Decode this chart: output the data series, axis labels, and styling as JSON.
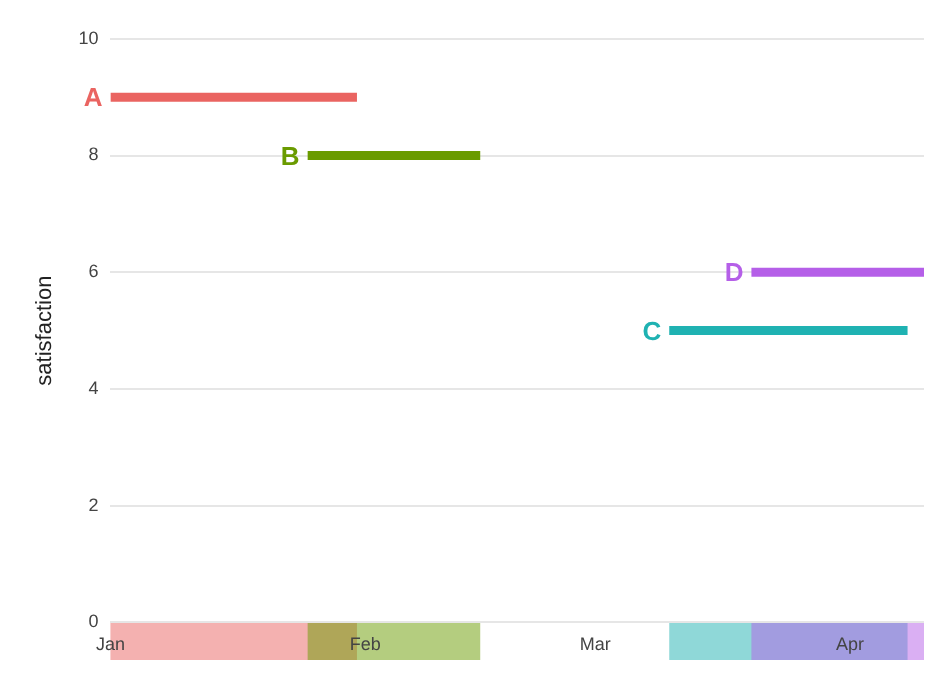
{
  "chart_data": {
    "type": "line",
    "ylabel": "satisfaction",
    "series": [
      {
        "name": "A",
        "color": "#ea6461",
        "x": [
          "--01-01",
          "--01-31"
        ],
        "values": [
          9,
          9
        ]
      },
      {
        "name": "B",
        "color": "#6a9b00",
        "x": [
          "--01-25",
          "--02-15"
        ],
        "values": [
          8,
          8
        ]
      },
      {
        "name": "C",
        "color": "#1fb2b2",
        "x": [
          "--03-10",
          "--04-08"
        ],
        "values": [
          5,
          5
        ]
      },
      {
        "name": "D",
        "color": "#b55fe8",
        "x": [
          "--03-20",
          "--04-10"
        ],
        "values": [
          6,
          6
        ]
      }
    ],
    "xlim": [
      "--01-01",
      "--04-10"
    ],
    "xticks": [
      {
        "value": "--01-01",
        "label": "Jan"
      },
      {
        "value": "--02-01",
        "label": "Feb"
      },
      {
        "value": "--03-01",
        "label": "Mar"
      },
      {
        "value": "--04-01",
        "label": "Apr"
      }
    ],
    "ylim": [
      0,
      10
    ],
    "yticks": [
      0,
      2,
      4,
      6,
      8,
      10
    ],
    "grid": "y",
    "legend": false
  }
}
